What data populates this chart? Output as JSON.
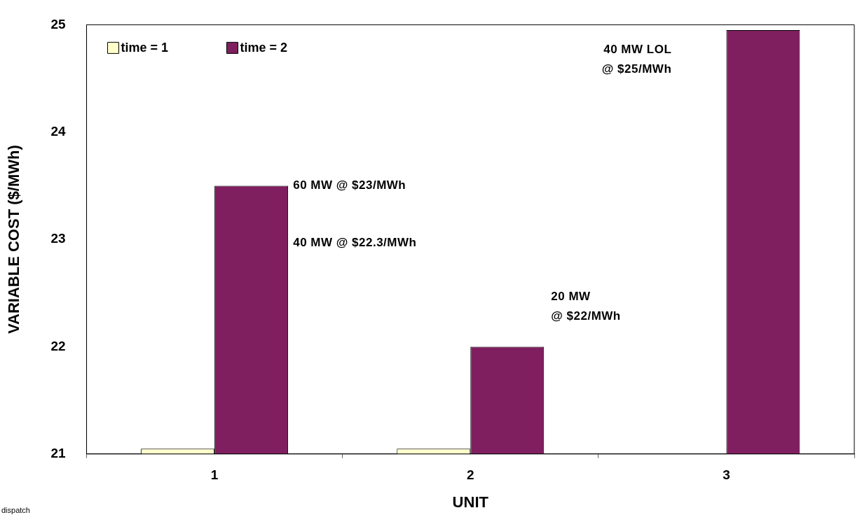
{
  "chart_data": {
    "type": "bar",
    "xlabel": "UNIT",
    "ylabel": "VARIABLE COST ($/MWh)",
    "categories": [
      "1",
      "2",
      "3"
    ],
    "series": [
      {
        "name": "time = 1",
        "color": "#ffffcc",
        "values": [
          21.05,
          21.05,
          null
        ]
      },
      {
        "name": "time = 2",
        "color": "#7f1f5f",
        "values": [
          23.5,
          22,
          24.95
        ]
      }
    ],
    "ylim": [
      21,
      25
    ],
    "yticks": [
      21,
      22,
      23,
      24,
      25
    ],
    "legend": "top left",
    "annotations": [
      "60 MW @ $23/MWh",
      "40 MW @ $22.3/MWh",
      "20 MW\n@ $22/MWh",
      "40 MW LOL\n@ $25/MWh",
      "dispatch"
    ]
  }
}
